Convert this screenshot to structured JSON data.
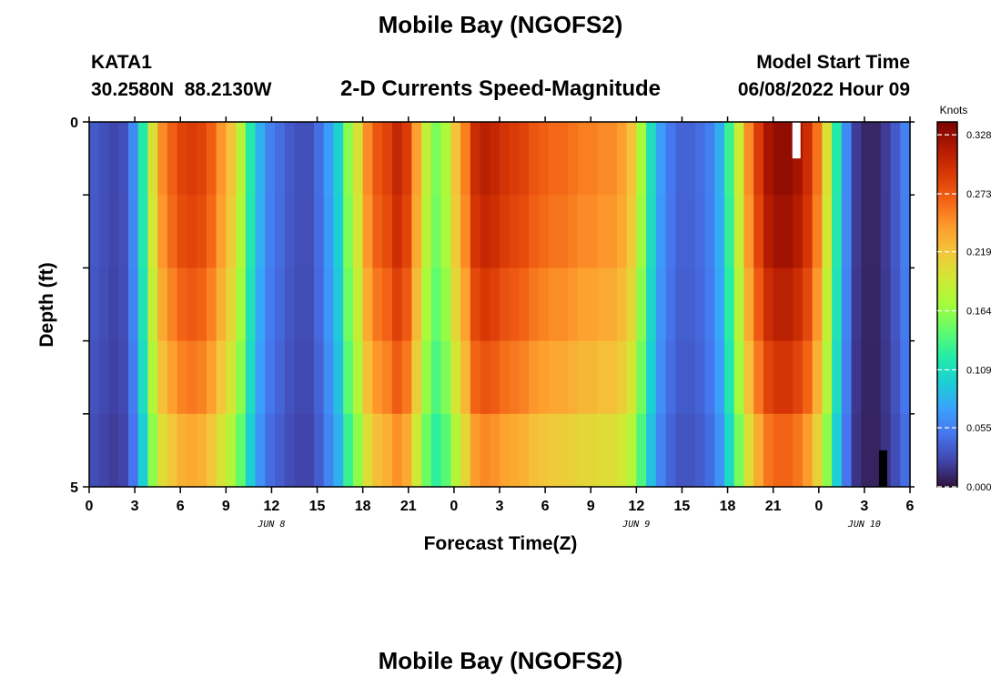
{
  "page": {
    "title_top": "Mobile Bay (NGOFS2)",
    "title_bottom": "Mobile Bay (NGOFS2)",
    "station_id": "KATA1",
    "station_coords": "30.2580N  88.2130W",
    "plot_title": "2-D Currents Speed-Magnitude",
    "model_start_label": "Model Start Time",
    "model_start_value": "06/08/2022 Hour 09"
  },
  "chart_data": {
    "type": "heatmap",
    "title": "2-D Currents Speed-Magnitude",
    "xlabel": "Forecast Time(Z)",
    "ylabel": "Depth (ft)",
    "x_range_hours": [
      0,
      54
    ],
    "y_range": [
      0,
      5
    ],
    "x_ticks": [
      "0",
      "3",
      "6",
      "9",
      "12",
      "15",
      "18",
      "21",
      "0",
      "3",
      "6",
      "9",
      "12",
      "15",
      "18",
      "21",
      "0",
      "3",
      "6"
    ],
    "y_tick_labels": [
      {
        "value": 0,
        "label": "0"
      },
      {
        "value": 5,
        "label": "5"
      }
    ],
    "date_labels": [
      {
        "hour": 12,
        "label": "JUN 8"
      },
      {
        "hour": 36,
        "label": "JUN 9"
      },
      {
        "hour": 51,
        "label": "JUN 10"
      }
    ],
    "depth_layers": 5,
    "surface_profile": [
      0.035,
      0.03,
      0.025,
      0.03,
      0.06,
      0.12,
      0.2,
      0.25,
      0.27,
      0.285,
      0.29,
      0.285,
      0.27,
      0.245,
      0.22,
      0.18,
      0.12,
      0.08,
      0.055,
      0.045,
      0.035,
      0.03,
      0.03,
      0.045,
      0.07,
      0.1,
      0.16,
      0.2,
      0.25,
      0.275,
      0.285,
      0.305,
      0.29,
      0.24,
      0.185,
      0.155,
      0.175,
      0.22,
      0.255,
      0.3,
      0.31,
      0.305,
      0.295,
      0.29,
      0.285,
      0.275,
      0.27,
      0.265,
      0.265,
      0.26,
      0.255,
      0.255,
      0.25,
      0.25,
      0.24,
      0.22,
      0.17,
      0.11,
      0.07,
      0.05,
      0.04,
      0.04,
      0.045,
      0.055,
      0.08,
      0.13,
      0.19,
      0.25,
      0.29,
      0.32,
      0.33,
      0.33,
      0.32,
      0.3,
      0.26,
      0.2,
      0.12,
      0.06,
      0.02,
      0.01,
      0.01,
      0.02,
      0.035,
      0.055
    ],
    "layer_factors": [
      1.0,
      1.0,
      0.96,
      0.92,
      0.86,
      0.76
    ],
    "colorbar": {
      "unit": "Knots",
      "min": 0.0,
      "max": 0.34,
      "ticks": [
        "0.328",
        "0.273",
        "0.219",
        "0.164",
        "0.109",
        "0.055",
        "0.000"
      ],
      "colors": [
        "#30123b",
        "#4145ab",
        "#4675ed",
        "#39a2fc",
        "#1bcfd4",
        "#24eca6",
        "#61fc6c",
        "#a4fc3b",
        "#d1e834",
        "#f3c63a",
        "#fe9b2d",
        "#f36315",
        "#d93806",
        "#b11901",
        "#7a0402"
      ]
    },
    "missing_markers": [
      {
        "hour": 46.5,
        "depth_top": 0.0,
        "depth_bottom": 0.5,
        "color": "#ffffff"
      },
      {
        "hour": 52.2,
        "depth_top": 4.5,
        "depth_bottom": 5.0,
        "color": "#000000"
      }
    ]
  }
}
